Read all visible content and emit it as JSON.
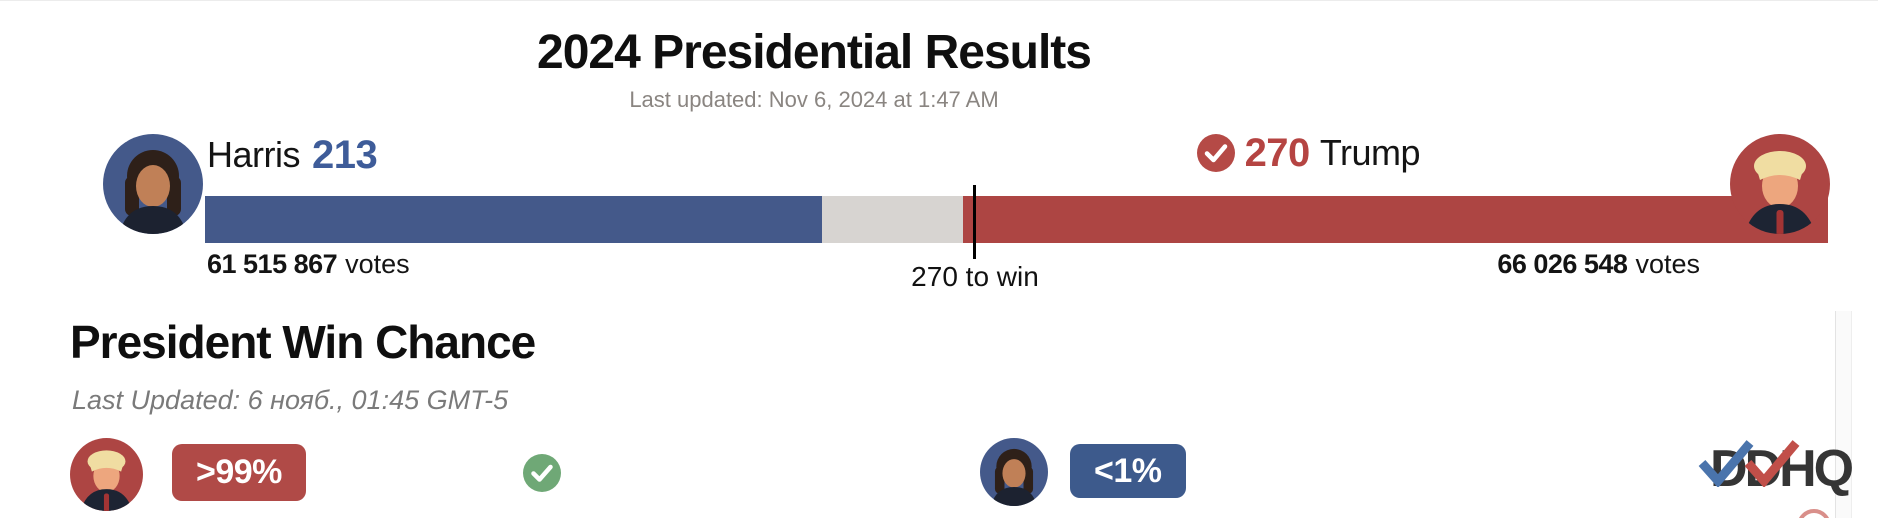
{
  "header": {
    "title": "2024 Presidential Results",
    "last_updated": "Last updated: Nov 6, 2024 at 1:47 AM"
  },
  "candidates": {
    "harris": {
      "name": "Harris",
      "electoral_votes": "213",
      "votes": "61 515 867",
      "votes_label": "votes",
      "win_chance": "<1%"
    },
    "trump": {
      "name": "Trump",
      "electoral_votes": "270",
      "votes": "66 026 548",
      "votes_label": "votes",
      "win_chance": ">99%"
    }
  },
  "results_bar": {
    "marker_label": "270 to win"
  },
  "win_chance": {
    "title": "President Win Chance",
    "last_updated": "Last Updated: 6 нояб., 01:45 GMT-5"
  },
  "logo": {
    "text": "DDHQ"
  },
  "colors": {
    "dem": "#44598a",
    "rep": "#ad4543",
    "undecided": "#d7d4d1",
    "dem_text": "#3e5c99",
    "rep_text": "#b54442",
    "dem_badge": "#3d5a8c",
    "rep_badge": "#b04a47",
    "green_check": "#6fa876"
  },
  "chart_data": {
    "type": "bar",
    "title": "2024 Presidential Results",
    "series": [
      {
        "name": "Harris",
        "electoral_votes": 213,
        "popular_votes": 61515867,
        "win_chance_label": "<1%",
        "projected_winner": false
      },
      {
        "name": "Trump",
        "electoral_votes": 270,
        "popular_votes": 66026548,
        "win_chance_label": ">99%",
        "projected_winner": true
      }
    ],
    "threshold": {
      "electoral_votes": 270,
      "label": "270 to win"
    },
    "bar_segments_pct": {
      "dem": 38.0,
      "undecided": 8.7,
      "rep": 53.3
    },
    "marker_pct": 47.3
  }
}
